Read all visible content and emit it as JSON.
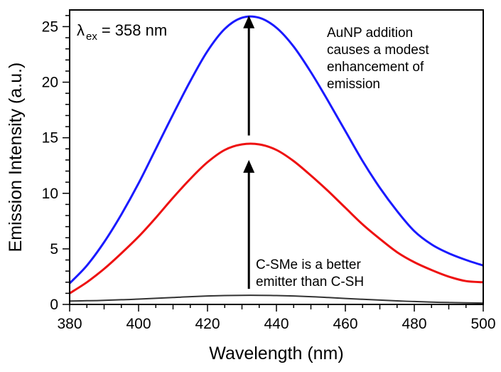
{
  "chart_data": {
    "type": "line",
    "xlabel": "Wavelength (nm)",
    "ylabel": "Emission Intensity (a.u.)",
    "xlim": [
      380,
      500
    ],
    "ylim": [
      0,
      26.5
    ],
    "xticks": [
      380,
      400,
      420,
      440,
      460,
      480,
      500
    ],
    "yticks": [
      0,
      5,
      10,
      15,
      20,
      25
    ],
    "x": [
      380,
      385,
      390,
      395,
      400,
      405,
      410,
      415,
      420,
      425,
      430,
      435,
      440,
      445,
      450,
      455,
      460,
      465,
      470,
      475,
      480,
      485,
      490,
      495,
      500
    ],
    "series": [
      {
        "color": "#1a1aff",
        "values": [
          1.9,
          3.5,
          5.6,
          8.1,
          10.9,
          14.0,
          17.1,
          20.1,
          22.8,
          24.8,
          25.8,
          25.8,
          24.9,
          23.2,
          20.9,
          18.3,
          15.6,
          12.9,
          10.5,
          8.4,
          6.6,
          5.4,
          4.6,
          4.0,
          3.5
        ]
      },
      {
        "color": "#ee1111",
        "values": [
          1.0,
          2.0,
          3.2,
          4.6,
          6.1,
          7.8,
          9.6,
          11.3,
          12.8,
          13.9,
          14.4,
          14.4,
          13.9,
          12.9,
          11.6,
          10.2,
          8.7,
          7.2,
          5.9,
          4.7,
          3.8,
          3.1,
          2.5,
          2.1,
          2.0
        ]
      },
      {
        "color": "#333333",
        "values": [
          0.3,
          0.33,
          0.37,
          0.42,
          0.48,
          0.55,
          0.62,
          0.7,
          0.76,
          0.8,
          0.82,
          0.82,
          0.8,
          0.76,
          0.7,
          0.62,
          0.54,
          0.46,
          0.39,
          0.32,
          0.26,
          0.21,
          0.17,
          0.14,
          0.12
        ]
      }
    ],
    "annotations": {
      "lambda_symbol": "λ",
      "lambda_sub": "ex",
      "lambda_value": "= 358 nm",
      "top_note": [
        "AuNP addition",
        "causes a modest",
        "enhancement of",
        "emission"
      ],
      "bottom_note": [
        "C-SMe is a better",
        "emitter than C-SH"
      ]
    },
    "arrows": [
      {
        "x": 432,
        "from": 15.2,
        "to": 26.0
      },
      {
        "x": 432,
        "from": 1.4,
        "to": 13.0
      }
    ],
    "grid": false,
    "legend": "none"
  }
}
